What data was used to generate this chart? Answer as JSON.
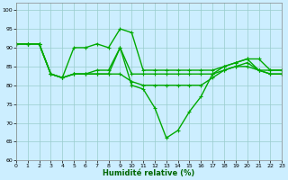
{
  "xlabel": "Humidité relative (%)",
  "background_color": "#cceeff",
  "grid_color": "#99cccc",
  "line_color": "#00aa00",
  "xlim": [
    0,
    23
  ],
  "ylim": [
    60,
    102
  ],
  "yticks": [
    60,
    65,
    70,
    75,
    80,
    85,
    90,
    95,
    100
  ],
  "xticks": [
    0,
    1,
    2,
    3,
    4,
    5,
    6,
    7,
    8,
    9,
    10,
    11,
    12,
    13,
    14,
    15,
    16,
    17,
    18,
    19,
    20,
    21,
    22,
    23
  ],
  "line1": [
    91,
    91,
    91,
    83,
    82,
    90,
    90,
    91,
    90,
    95,
    94,
    84,
    84,
    84,
    84,
    84,
    84,
    84,
    85,
    86,
    87,
    87,
    84,
    84
  ],
  "line2": [
    91,
    91,
    91,
    83,
    82,
    83,
    83,
    84,
    84,
    90,
    83,
    83,
    83,
    83,
    83,
    83,
    83,
    83,
    84,
    85,
    86,
    84,
    83,
    83
  ],
  "line3": [
    91,
    91,
    91,
    83,
    82,
    83,
    83,
    83,
    83,
    83,
    81,
    80,
    80,
    80,
    80,
    80,
    80,
    82,
    84,
    85,
    85,
    84,
    84,
    84
  ],
  "line4": [
    91,
    91,
    91,
    83,
    82,
    83,
    83,
    83,
    83,
    90,
    80,
    79,
    74,
    66,
    68,
    73,
    77,
    83,
    85,
    86,
    87,
    84,
    83,
    83
  ],
  "marker": "+",
  "linewidth": 1.0,
  "markersize": 3.5
}
